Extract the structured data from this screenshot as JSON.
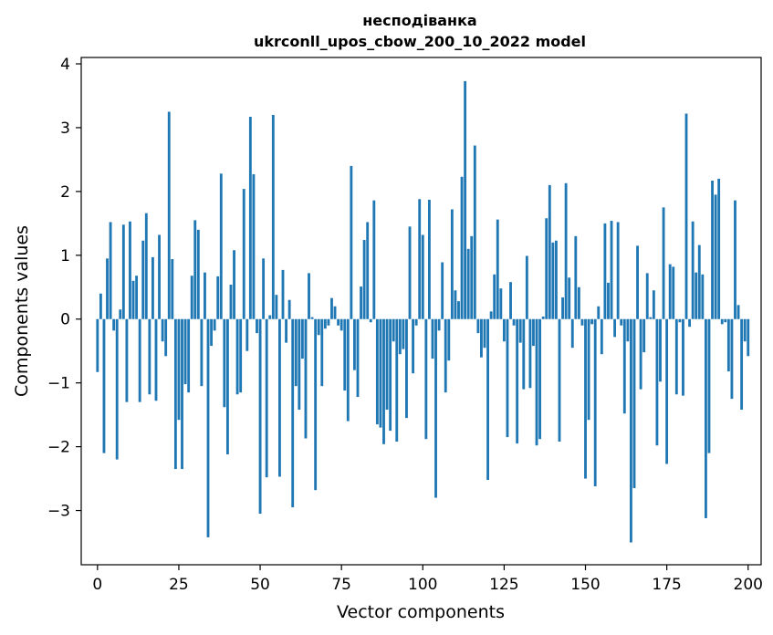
{
  "chart_data": {
    "type": "bar",
    "title": "несподіванка",
    "subtitle": "ukrconll_upos_cbow_200_10_2022 model",
    "xlabel": "Vector components",
    "ylabel": "Components values",
    "xlim": [
      -5,
      204
    ],
    "ylim": [
      -3.85,
      4.1
    ],
    "xticks": [
      0,
      25,
      50,
      75,
      100,
      125,
      150,
      175,
      200
    ],
    "yticks": [
      -3,
      -2,
      -1,
      0,
      1,
      2,
      3,
      4
    ],
    "xtick_labels": [
      "0",
      "25",
      "50",
      "75",
      "100",
      "125",
      "150",
      "175",
      "200"
    ],
    "ytick_labels": [
      "−3",
      "−2",
      "−1",
      "0",
      "1",
      "2",
      "3",
      "4"
    ],
    "bar_color": "#1f77b4",
    "grid": false,
    "values": [
      -0.83,
      0.4,
      -2.1,
      0.95,
      1.52,
      -0.18,
      -2.2,
      0.15,
      1.48,
      -1.3,
      1.53,
      0.6,
      0.68,
      -1.3,
      1.23,
      1.66,
      -1.18,
      0.97,
      -1.28,
      1.32,
      -0.35,
      -0.58,
      3.25,
      0.94,
      -2.35,
      -1.58,
      -2.35,
      -1.02,
      -1.15,
      0.68,
      1.55,
      1.4,
      -1.05,
      0.73,
      -3.42,
      -0.42,
      -0.18,
      0.67,
      2.28,
      -1.38,
      -2.12,
      0.54,
      1.08,
      -1.18,
      -1.15,
      2.04,
      -0.5,
      3.17,
      2.27,
      -0.22,
      -3.05,
      0.95,
      -2.48,
      0.06,
      3.2,
      0.38,
      -2.47,
      0.77,
      -0.37,
      0.3,
      -2.95,
      -1.05,
      -1.42,
      -0.62,
      -1.87,
      0.72,
      0.03,
      -2.68,
      -0.25,
      -1.05,
      -0.15,
      -0.1,
      0.33,
      0.2,
      -0.1,
      -0.18,
      -1.12,
      -1.6,
      2.4,
      -0.8,
      -1.22,
      0.51,
      1.24,
      1.52,
      -0.05,
      1.86,
      -1.65,
      -1.7,
      -1.96,
      -1.42,
      -1.75,
      -0.35,
      -1.92,
      -0.55,
      -0.47,
      -1.55,
      1.45,
      -0.85,
      -0.1,
      1.88,
      1.32,
      -1.88,
      1.87,
      -0.62,
      -2.8,
      -0.18,
      0.89,
      -1.15,
      -0.65,
      1.72,
      0.45,
      0.28,
      2.23,
      3.73,
      1.1,
      1.3,
      2.72,
      -0.22,
      -0.6,
      -0.45,
      -2.52,
      0.12,
      0.7,
      1.56,
      0.48,
      -0.35,
      -1.85,
      0.58,
      -0.1,
      -1.95,
      -0.37,
      -1.1,
      0.99,
      -1.08,
      -0.42,
      -1.98,
      -1.88,
      0.04,
      1.58,
      2.1,
      1.2,
      1.23,
      -1.92,
      0.34,
      2.13,
      0.65,
      -0.45,
      1.3,
      0.5,
      -0.1,
      -2.5,
      -1.58,
      -0.08,
      -2.62,
      0.2,
      -0.55,
      1.5,
      0.57,
      1.54,
      -0.28,
      1.52,
      -0.1,
      -1.48,
      -0.35,
      -3.5,
      -2.65,
      1.15,
      -1.1,
      -0.52,
      0.72,
      0.03,
      0.45,
      -1.98,
      -0.98,
      1.75,
      -2.27,
      0.86,
      0.82,
      -1.18,
      -0.05,
      -1.2,
      3.22,
      -0.12,
      1.53,
      0.73,
      1.16,
      0.7,
      -3.12,
      -2.1,
      2.17,
      1.95,
      2.2,
      -0.08,
      -0.05,
      -0.82,
      -1.25,
      1.86,
      0.22,
      -1.42,
      -0.35,
      -0.58
    ]
  }
}
